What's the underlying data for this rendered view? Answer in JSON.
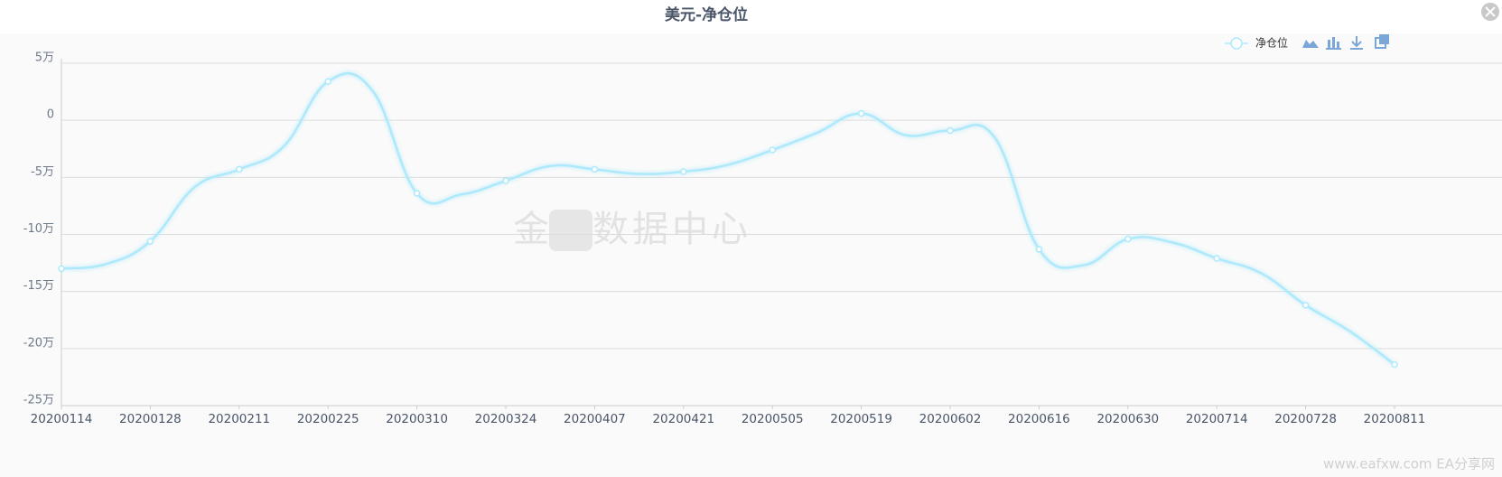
{
  "chart_data": {
    "type": "line",
    "title": "美元-净仓位",
    "categories": [
      "20200114",
      null,
      "20200128",
      null,
      "20200211",
      null,
      "20200225",
      null,
      "20200310",
      null,
      "20200324",
      null,
      "20200407",
      null,
      "20200421",
      null,
      "20200505",
      null,
      "20200519",
      null,
      "20200602",
      null,
      "20200616",
      null,
      "20200630",
      null,
      "20200714",
      null,
      "20200728",
      null,
      "20200811"
    ],
    "series": [
      {
        "name": "净仓位",
        "color": "#aee9fb",
        "values": [
          -13.0,
          -12.6,
          -10.6,
          -5.85,
          -4.3,
          -2.3,
          3.4,
          2.6,
          -6.4,
          -6.5,
          -5.3,
          -4.0,
          -4.3,
          -4.7,
          -4.5,
          -3.9,
          -2.6,
          -1.1,
          0.6,
          -1.3,
          -0.9,
          -1.5,
          -11.3,
          -12.7,
          -10.4,
          -10.7,
          -12.1,
          -13.4,
          -16.2,
          -18.5,
          -21.4
        ]
      }
    ],
    "ylim": [
      -25,
      5
    ],
    "yticks": [
      {
        "value": -25,
        "label": "-25万"
      },
      {
        "value": -20,
        "label": "-20万"
      },
      {
        "value": -15,
        "label": "-15万"
      },
      {
        "value": -10,
        "label": "-10万"
      },
      {
        "value": -5,
        "label": "-5万"
      },
      0,
      {
        "value": 5,
        "label": "5万"
      }
    ],
    "grid": true,
    "legend": "top-right",
    "watermark": "金十数据中心",
    "source_watermark": "www.eafxw.com  EA分享网"
  }
}
